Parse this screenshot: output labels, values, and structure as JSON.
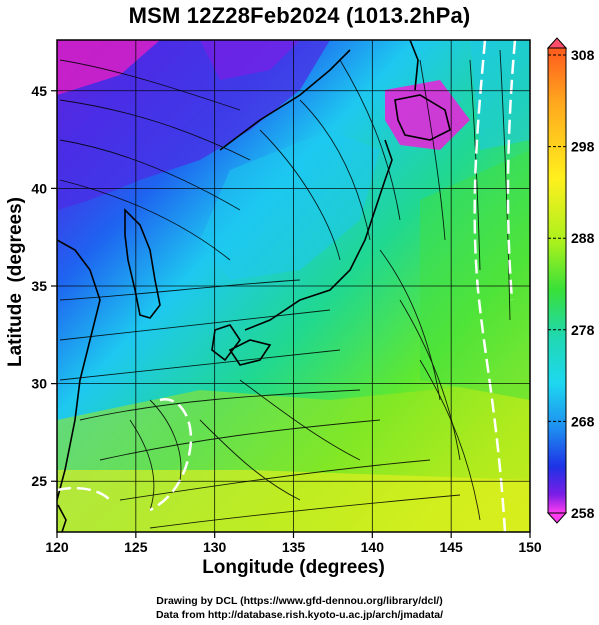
{
  "title": "MSM 12Z28Feb2024 (1013.2hPa)",
  "x_axis": {
    "label": "Longitude (degrees)",
    "range": [
      120,
      150
    ],
    "ticks": [
      "120",
      "125",
      "130",
      "135",
      "140",
      "145",
      "150"
    ]
  },
  "y_axis": {
    "label": "Latitude  (degrees)",
    "range": [
      22.4,
      47.6
    ],
    "ticks": [
      "25",
      "30",
      "35",
      "40",
      "45"
    ]
  },
  "colorbar": {
    "unit_values": [
      258,
      308
    ],
    "labels": [
      "308",
      "298",
      "288",
      "278",
      "268",
      "258"
    ],
    "colors": [
      "#ff4d6a",
      "#ff5a1e",
      "#ffa91e",
      "#fff01e",
      "#b4f01e",
      "#38e038",
      "#20d8a0",
      "#1ed8f0",
      "#1e8cf0",
      "#1e32e6",
      "#7a1ee6",
      "#ff3cf0"
    ]
  },
  "map": {
    "field": "temperature (K) with streamlines",
    "gridlines": true,
    "land_color": "#000000"
  },
  "credits": {
    "line1": "Drawing by DCL (https://www.gfd-dennou.org/library/dcl/)",
    "line2": "Data from http://database.rish.kyoto-u.ac.jp/arch/jmadata/"
  }
}
